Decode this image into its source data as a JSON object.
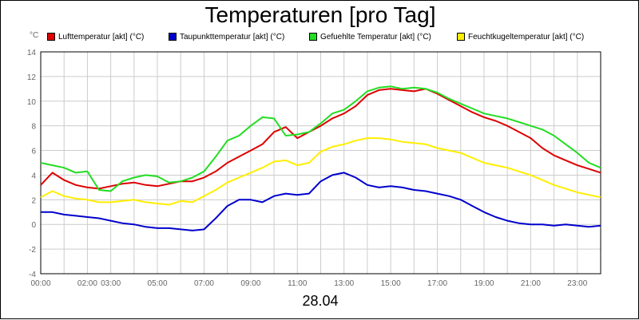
{
  "chart_data": {
    "type": "line",
    "title": "Temperaturen [pro Tag]",
    "unit_label": "°C",
    "date_label": "28.04",
    "x_ticks": [
      "00:00",
      "02:00",
      "03:00",
      "05:00",
      "07:00",
      "09:00",
      "11:00",
      "13:00",
      "15:00",
      "17:00",
      "19:00",
      "21:00",
      "23:00"
    ],
    "x_tick_hours": [
      0,
      2,
      3,
      5,
      7,
      9,
      11,
      13,
      15,
      17,
      19,
      21,
      23
    ],
    "x_range": [
      0,
      24
    ],
    "y_ticks": [
      "-4",
      "-2",
      "0",
      "2",
      "4",
      "6",
      "8",
      "10",
      "12",
      "14"
    ],
    "y_tick_values": [
      -4,
      -2,
      0,
      2,
      4,
      6,
      8,
      10,
      12,
      14
    ],
    "ylim": [
      -4,
      14
    ],
    "grid": true,
    "legend_position": "top",
    "series": [
      {
        "name": "Lufttemperatur [akt] (°C)",
        "color": "#dd0000",
        "x": [
          0,
          0.5,
          1,
          1.5,
          2,
          2.5,
          3,
          3.5,
          4,
          4.5,
          5,
          5.5,
          6,
          6.5,
          7,
          7.5,
          8,
          8.5,
          9,
          9.5,
          10,
          10.5,
          11,
          11.5,
          12,
          12.5,
          13,
          13.5,
          14,
          14.5,
          15,
          15.5,
          16,
          16.5,
          17,
          17.5,
          18,
          18.5,
          19,
          19.5,
          20,
          20.5,
          21,
          21.5,
          22,
          22.5,
          23,
          23.5,
          24
        ],
        "y": [
          3.2,
          4.2,
          3.6,
          3.2,
          3.0,
          2.9,
          3.1,
          3.3,
          3.4,
          3.2,
          3.1,
          3.3,
          3.5,
          3.5,
          3.8,
          4.3,
          5.0,
          5.5,
          6.0,
          6.5,
          7.5,
          7.9,
          7.0,
          7.5,
          8.0,
          8.6,
          9.0,
          9.6,
          10.5,
          10.9,
          11.0,
          10.9,
          10.8,
          11.0,
          10.6,
          10.1,
          9.6,
          9.1,
          8.7,
          8.4,
          8.0,
          7.5,
          7.0,
          6.2,
          5.6,
          5.2,
          4.8,
          4.5,
          4.2
        ]
      },
      {
        "name": "Taupunkttemperatur [akt] (°C)",
        "color": "#0000cc",
        "x": [
          0,
          0.5,
          1,
          1.5,
          2,
          2.5,
          3,
          3.5,
          4,
          4.5,
          5,
          5.5,
          6,
          6.5,
          7,
          7.5,
          8,
          8.5,
          9,
          9.5,
          10,
          10.5,
          11,
          11.5,
          12,
          12.5,
          13,
          13.5,
          14,
          14.5,
          15,
          15.5,
          16,
          16.5,
          17,
          17.5,
          18,
          18.5,
          19,
          19.5,
          20,
          20.5,
          21,
          21.5,
          22,
          22.5,
          23,
          23.5,
          24
        ],
        "y": [
          1.0,
          1.0,
          0.8,
          0.7,
          0.6,
          0.5,
          0.3,
          0.1,
          0.0,
          -0.2,
          -0.3,
          -0.3,
          -0.4,
          -0.5,
          -0.4,
          0.5,
          1.5,
          2.0,
          2.0,
          1.8,
          2.3,
          2.5,
          2.4,
          2.5,
          3.5,
          4.0,
          4.2,
          3.8,
          3.2,
          3.0,
          3.1,
          3.0,
          2.8,
          2.7,
          2.5,
          2.3,
          2.0,
          1.5,
          1.0,
          0.6,
          0.3,
          0.1,
          0.0,
          0.0,
          -0.1,
          0.0,
          -0.1,
          -0.2,
          -0.1
        ]
      },
      {
        "name": "Gefuehlte Temperatur [akt] (°C)",
        "color": "#22dd22",
        "x": [
          0,
          0.5,
          1,
          1.5,
          2,
          2.5,
          3,
          3.5,
          4,
          4.5,
          5,
          5.5,
          6,
          6.5,
          7,
          7.5,
          8,
          8.5,
          9,
          9.5,
          10,
          10.5,
          11,
          11.5,
          12,
          12.5,
          13,
          13.5,
          14,
          14.5,
          15,
          15.5,
          16,
          16.5,
          17,
          17.5,
          18,
          18.5,
          19,
          19.5,
          20,
          20.5,
          21,
          21.5,
          22,
          22.5,
          23,
          23.5,
          24
        ],
        "y": [
          5.0,
          4.8,
          4.6,
          4.2,
          4.3,
          2.8,
          2.7,
          3.5,
          3.8,
          4.0,
          3.9,
          3.4,
          3.5,
          3.8,
          4.3,
          5.5,
          6.8,
          7.2,
          8.0,
          8.7,
          8.6,
          7.2,
          7.3,
          7.5,
          8.2,
          9.0,
          9.3,
          10.0,
          10.8,
          11.1,
          11.2,
          11.0,
          11.1,
          11.0,
          10.7,
          10.2,
          9.8,
          9.4,
          9.0,
          8.8,
          8.6,
          8.3,
          8.0,
          7.7,
          7.2,
          6.5,
          5.8,
          5.0,
          4.6
        ]
      },
      {
        "name": "Feuchtkugeltemperatur [akt] (°C)",
        "color": "#ffee00",
        "x": [
          0,
          0.5,
          1,
          1.5,
          2,
          2.5,
          3,
          3.5,
          4,
          4.5,
          5,
          5.5,
          6,
          6.5,
          7,
          7.5,
          8,
          8.5,
          9,
          9.5,
          10,
          10.5,
          11,
          11.5,
          12,
          12.5,
          13,
          13.5,
          14,
          14.5,
          15,
          15.5,
          16,
          16.5,
          17,
          17.5,
          18,
          18.5,
          19,
          19.5,
          20,
          20.5,
          21,
          21.5,
          22,
          22.5,
          23,
          23.5,
          24
        ],
        "y": [
          2.2,
          2.7,
          2.3,
          2.1,
          2.0,
          1.8,
          1.8,
          1.9,
          2.0,
          1.8,
          1.7,
          1.6,
          1.9,
          1.8,
          2.3,
          2.8,
          3.4,
          3.8,
          4.2,
          4.6,
          5.1,
          5.2,
          4.8,
          5.0,
          5.9,
          6.3,
          6.5,
          6.8,
          7.0,
          7.0,
          6.9,
          6.7,
          6.6,
          6.5,
          6.2,
          6.0,
          5.8,
          5.4,
          5.0,
          4.8,
          4.6,
          4.3,
          4.0,
          3.6,
          3.2,
          2.9,
          2.6,
          2.4,
          2.2
        ]
      }
    ]
  }
}
